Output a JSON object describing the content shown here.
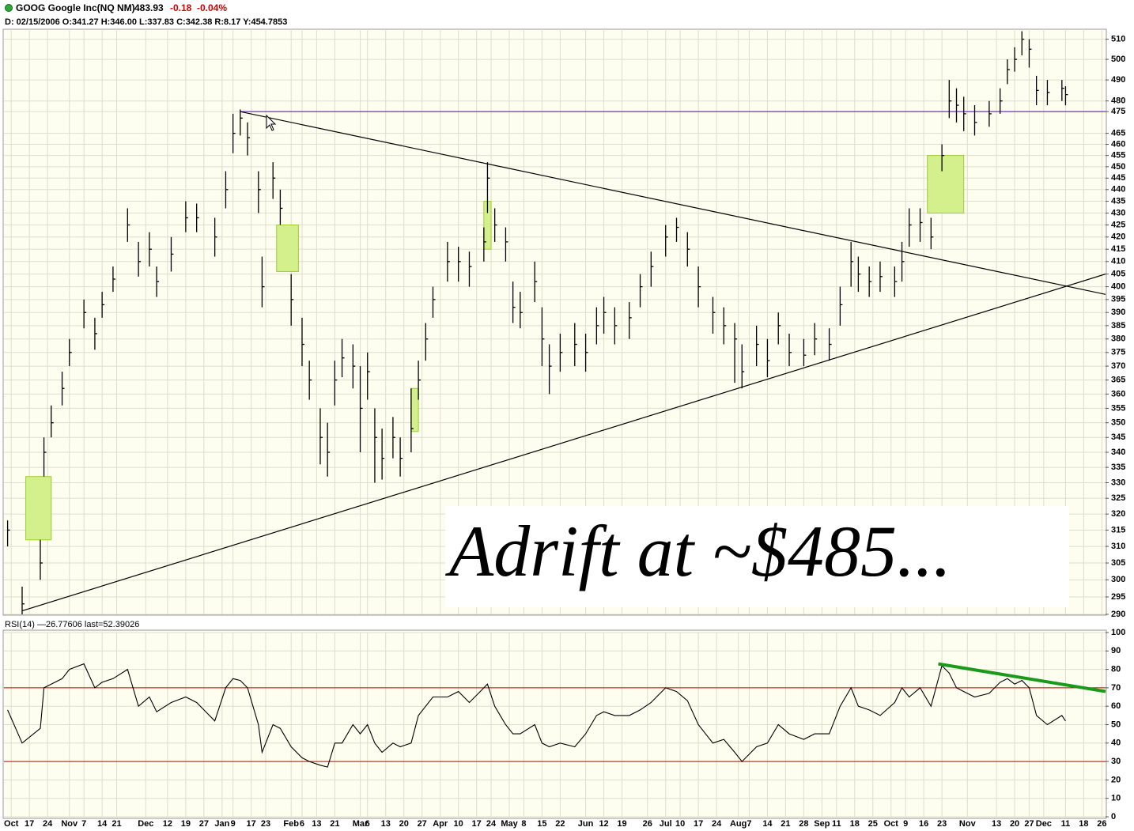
{
  "chart_data": [
    {
      "type": "ohlc",
      "title": "GOOG Google Inc(NQ NM)",
      "last": 483.93,
      "change": -0.18,
      "change_pct": "-0.04%",
      "subtitle": "D: 02/15/2006 O:341.27 H:346.00 L:337.83 C:342.38 R:8.17 Y:454.7853",
      "annotation": "Adrift at ~$485...",
      "color": "#000000",
      "log": true,
      "grid": true,
      "xlim": [
        0,
        303
      ],
      "ylim": [
        290,
        515
      ],
      "yticks": [
        290,
        295,
        300,
        305,
        310,
        315,
        320,
        325,
        330,
        335,
        340,
        345,
        350,
        355,
        360,
        365,
        370,
        375,
        380,
        385,
        390,
        395,
        400,
        405,
        410,
        415,
        420,
        425,
        430,
        435,
        440,
        445,
        450,
        455,
        460,
        465,
        475,
        480,
        490,
        500,
        510
      ],
      "x": [
        1,
        5,
        10,
        11,
        13,
        16,
        18,
        22,
        25,
        27,
        30,
        34,
        37,
        40,
        42,
        46,
        50,
        53,
        58,
        61,
        63,
        65,
        67,
        70,
        71,
        74,
        76,
        79,
        82,
        84,
        87,
        89,
        91,
        93,
        96,
        98,
        100,
        102,
        104,
        107,
        109,
        112,
        114,
        116,
        118,
        122,
        125,
        128,
        132,
        133,
        135,
        138,
        140,
        142,
        146,
        148,
        150,
        153,
        157,
        160,
        163,
        165,
        168,
        172,
        175,
        178,
        182,
        185,
        188,
        191,
        195,
        198,
        201,
        203,
        207,
        210,
        213,
        216,
        220,
        223,
        227,
        230,
        233,
        235,
        238,
        241,
        245,
        247,
        249,
        252,
        255,
        258,
        260,
        262,
        264,
        267,
        271,
        274,
        276,
        278,
        280,
        282,
        284,
        287,
        291,
        292
      ],
      "values": [
        315,
        293,
        305,
        340,
        350,
        362,
        375,
        390,
        382,
        393,
        403,
        425,
        410,
        415,
        402,
        413,
        428,
        428,
        420,
        440,
        465,
        472,
        463,
        440,
        400,
        445,
        432,
        395,
        378,
        365,
        345,
        340,
        365,
        373,
        370,
        355,
        368,
        345,
        338,
        345,
        338,
        348,
        365,
        380,
        395,
        410,
        410,
        408,
        418,
        445,
        425,
        418,
        392,
        390,
        402,
        380,
        370,
        375,
        378,
        375,
        385,
        390,
        385,
        388,
        400,
        408,
        420,
        424,
        415,
        400,
        390,
        385,
        380,
        368,
        378,
        372,
        385,
        375,
        374,
        380,
        378,
        393,
        410,
        405,
        402,
        404,
        402,
        410,
        425,
        426,
        420,
        455,
        480,
        478,
        474,
        470,
        474,
        480,
        495,
        500,
        510,
        505,
        485,
        484,
        486,
        483
      ],
      "high": [
        318,
        298,
        312,
        345,
        356,
        368,
        380,
        395,
        388,
        398,
        408,
        432,
        418,
        422,
        408,
        420,
        435,
        434,
        428,
        448,
        474,
        476,
        470,
        448,
        412,
        452,
        440,
        405,
        388,
        372,
        355,
        350,
        372,
        380,
        378,
        370,
        375,
        355,
        348,
        352,
        345,
        362,
        372,
        386,
        400,
        418,
        416,
        414,
        424,
        452,
        432,
        424,
        402,
        398,
        410,
        392,
        378,
        382,
        386,
        382,
        392,
        396,
        392,
        394,
        405,
        414,
        425,
        428,
        422,
        408,
        396,
        392,
        386,
        378,
        385,
        380,
        390,
        382,
        380,
        386,
        384,
        400,
        418,
        412,
        408,
        410,
        408,
        418,
        432,
        432,
        428,
        460,
        490,
        486,
        482,
        478,
        480,
        486,
        500,
        506,
        514,
        510,
        492,
        490,
        490,
        487
      ],
      "low": [
        310,
        290,
        300,
        332,
        345,
        356,
        370,
        384,
        376,
        388,
        398,
        418,
        404,
        408,
        396,
        406,
        422,
        422,
        412,
        432,
        456,
        464,
        455,
        430,
        392,
        436,
        425,
        385,
        370,
        358,
        336,
        332,
        356,
        366,
        362,
        340,
        358,
        330,
        331,
        338,
        332,
        340,
        358,
        372,
        388,
        402,
        402,
        400,
        410,
        430,
        418,
        410,
        386,
        384,
        394,
        370,
        360,
        368,
        370,
        368,
        378,
        382,
        378,
        380,
        392,
        400,
        412,
        418,
        408,
        392,
        382,
        378,
        364,
        362,
        370,
        366,
        378,
        370,
        370,
        374,
        372,
        385,
        400,
        398,
        396,
        398,
        396,
        402,
        416,
        418,
        415,
        448,
        472,
        470,
        466,
        464,
        468,
        474,
        488,
        494,
        502,
        496,
        478,
        478,
        480,
        478
      ],
      "hlines": [
        {
          "value": 475,
          "x": [
            65,
            303
          ],
          "color": "#5500cc"
        }
      ],
      "trendlines": [
        {
          "x": [
            5,
            303
          ],
          "y": [
            291,
            405
          ],
          "color": "#000000"
        },
        {
          "x": [
            65,
            303
          ],
          "y": [
            475,
            397
          ],
          "color": "#000000"
        }
      ],
      "gap_boxes": [
        {
          "x": [
            6,
            13
          ],
          "y": [
            312,
            332
          ]
        },
        {
          "x": [
            75,
            81
          ],
          "y": [
            406,
            425
          ]
        },
        {
          "x": [
            112,
            114
          ],
          "y": [
            347,
            362
          ]
        },
        {
          "x": [
            132,
            134
          ],
          "y": [
            415,
            435
          ]
        },
        {
          "x": [
            254,
            264
          ],
          "y": [
            430,
            455
          ]
        }
      ],
      "box_color": "#d4f08c"
    },
    {
      "type": "line",
      "title": "RSI(14) —26.77606 last=52.39026",
      "color": "#000000",
      "grid": true,
      "xlim": [
        0,
        303
      ],
      "ylim": [
        0,
        100
      ],
      "yticks": [
        0,
        10,
        20,
        30,
        40,
        50,
        60,
        70,
        80,
        90,
        100
      ],
      "xticks": [
        {
          "value": 2,
          "label": "Oct"
        },
        {
          "value": 7,
          "label": "17"
        },
        {
          "value": 12,
          "label": "24"
        },
        {
          "value": 18,
          "label": "Nov"
        },
        {
          "value": 22,
          "label": "7"
        },
        {
          "value": 27,
          "label": "14"
        },
        {
          "value": 31,
          "label": "21"
        },
        {
          "value": 39,
          "label": "Dec"
        },
        {
          "value": 45,
          "label": "12"
        },
        {
          "value": 50,
          "label": "19"
        },
        {
          "value": 55,
          "label": "27"
        },
        {
          "value": 60,
          "label": "Jan"
        },
        {
          "value": 63,
          "label": "9"
        },
        {
          "value": 68,
          "label": "17"
        },
        {
          "value": 72,
          "label": "23"
        },
        {
          "value": 79,
          "label": "Feb"
        },
        {
          "value": 82,
          "label": "6"
        },
        {
          "value": 86,
          "label": "13"
        },
        {
          "value": 91,
          "label": "21"
        },
        {
          "value": 98,
          "label": "Mar"
        },
        {
          "value": 100,
          "label": "6"
        },
        {
          "value": 105,
          "label": "13"
        },
        {
          "value": 110,
          "label": "20"
        },
        {
          "value": 115,
          "label": "27"
        },
        {
          "value": 120,
          "label": "Apr"
        },
        {
          "value": 125,
          "label": "10"
        },
        {
          "value": 130,
          "label": "17"
        },
        {
          "value": 134,
          "label": "24"
        },
        {
          "value": 139,
          "label": "May"
        },
        {
          "value": 143,
          "label": "8"
        },
        {
          "value": 148,
          "label": "15"
        },
        {
          "value": 153,
          "label": "22"
        },
        {
          "value": 160,
          "label": "Jun"
        },
        {
          "value": 165,
          "label": "12"
        },
        {
          "value": 170,
          "label": "19"
        },
        {
          "value": 177,
          "label": "26"
        },
        {
          "value": 182,
          "label": "Jul"
        },
        {
          "value": 186,
          "label": "10"
        },
        {
          "value": 191,
          "label": "17"
        },
        {
          "value": 196,
          "label": "24"
        },
        {
          "value": 202,
          "label": "Aug"
        },
        {
          "value": 205,
          "label": "7"
        },
        {
          "value": 210,
          "label": "14"
        },
        {
          "value": 215,
          "label": "21"
        },
        {
          "value": 220,
          "label": "28"
        },
        {
          "value": 225,
          "label": "Sep"
        },
        {
          "value": 229,
          "label": "11"
        },
        {
          "value": 234,
          "label": "18"
        },
        {
          "value": 239,
          "label": "25"
        },
        {
          "value": 244,
          "label": "Oct"
        },
        {
          "value": 248,
          "label": "9"
        },
        {
          "value": 253,
          "label": "16"
        },
        {
          "value": 258,
          "label": "23"
        },
        {
          "value": 265,
          "label": "Nov"
        },
        {
          "value": 273,
          "label": "13"
        },
        {
          "value": 278,
          "label": "20"
        },
        {
          "value": 282,
          "label": "27"
        },
        {
          "value": 286,
          "label": "Dec"
        },
        {
          "value": 292,
          "label": "11"
        },
        {
          "value": 297,
          "label": "18"
        },
        {
          "value": 302,
          "label": "26"
        }
      ],
      "x": [
        1,
        5,
        10,
        11,
        13,
        16,
        18,
        22,
        25,
        27,
        30,
        34,
        37,
        40,
        42,
        46,
        50,
        53,
        58,
        61,
        63,
        65,
        67,
        70,
        71,
        74,
        76,
        79,
        82,
        84,
        87,
        89,
        91,
        93,
        96,
        98,
        100,
        102,
        104,
        107,
        109,
        112,
        114,
        116,
        118,
        122,
        125,
        128,
        132,
        133,
        135,
        138,
        140,
        142,
        146,
        148,
        150,
        153,
        157,
        160,
        163,
        165,
        168,
        172,
        175,
        178,
        182,
        185,
        188,
        191,
        195,
        198,
        201,
        203,
        207,
        210,
        213,
        216,
        220,
        223,
        227,
        230,
        233,
        235,
        238,
        241,
        245,
        247,
        249,
        252,
        255,
        258,
        260,
        262,
        264,
        267,
        271,
        274,
        276,
        278,
        280,
        282,
        284,
        287,
        291,
        292
      ],
      "values": [
        58,
        40,
        48,
        70,
        72,
        75,
        80,
        83,
        70,
        73,
        75,
        80,
        60,
        65,
        57,
        62,
        65,
        62,
        52,
        70,
        75,
        74,
        70,
        50,
        35,
        50,
        48,
        38,
        32,
        30,
        28,
        27,
        40,
        40,
        50,
        45,
        50,
        40,
        35,
        40,
        38,
        40,
        55,
        60,
        65,
        65,
        68,
        62,
        70,
        72,
        60,
        50,
        45,
        45,
        50,
        40,
        38,
        40,
        38,
        45,
        55,
        57,
        55,
        55,
        58,
        62,
        70,
        68,
        63,
        50,
        40,
        42,
        35,
        30,
        38,
        40,
        50,
        45,
        42,
        45,
        45,
        60,
        70,
        60,
        58,
        55,
        62,
        70,
        65,
        70,
        60,
        82,
        78,
        70,
        68,
        65,
        67,
        73,
        75,
        72,
        74,
        70,
        55,
        50,
        55,
        52
      ],
      "hlines": [
        {
          "value": 30,
          "color": "#cc0000"
        },
        {
          "value": 70,
          "color": "#cc0000"
        }
      ],
      "trendlines": [
        {
          "x": [
            257,
            303
          ],
          "y": [
            83,
            68
          ],
          "color": "#1a9a1a"
        }
      ]
    }
  ]
}
